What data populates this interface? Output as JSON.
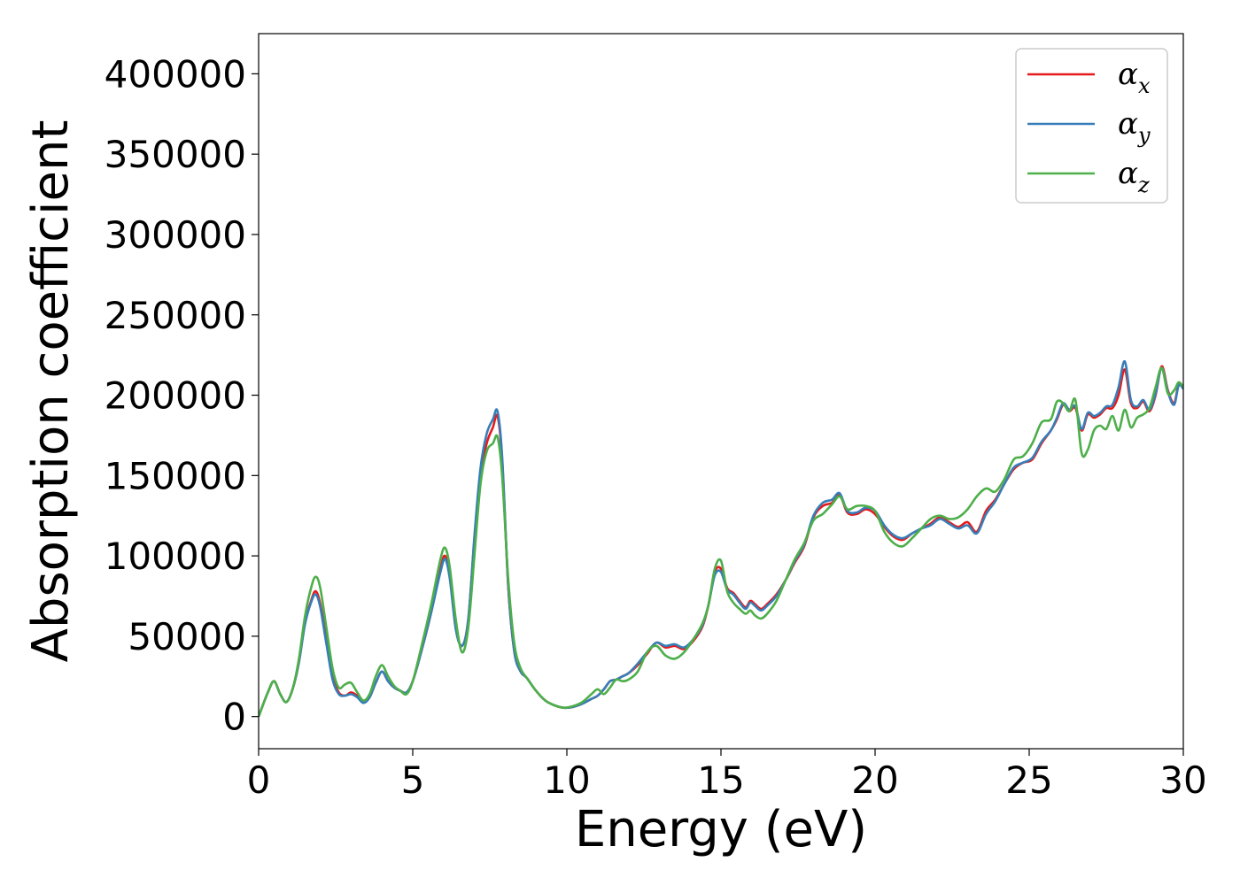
{
  "chart_data": {
    "type": "line",
    "title": "",
    "xlabel": "Energy (eV)",
    "ylabel": "Absorption coefficient",
    "xlim": [
      0,
      30
    ],
    "ylim": [
      -20000,
      425000
    ],
    "xticks": [
      "0",
      "5",
      "10",
      "15",
      "20",
      "25",
      "30"
    ],
    "yticks": [
      "0",
      "50000",
      "100000",
      "150000",
      "200000",
      "250000",
      "300000",
      "350000",
      "400000"
    ],
    "grid": false,
    "legend_position": "top-right",
    "series": [
      {
        "name": "αx",
        "legend_base": "α",
        "legend_sub": "x",
        "color": "#e41a1c",
        "x": [
          0,
          0.3,
          0.5,
          0.7,
          0.9,
          1.1,
          1.3,
          1.5,
          1.7,
          1.85,
          2.0,
          2.2,
          2.4,
          2.6,
          2.8,
          3.0,
          3.2,
          3.4,
          3.6,
          3.8,
          4.0,
          4.2,
          4.4,
          4.6,
          4.8,
          5.0,
          5.3,
          5.6,
          5.9,
          6.05,
          6.2,
          6.4,
          6.6,
          6.8,
          7.0,
          7.2,
          7.4,
          7.6,
          7.75,
          7.9,
          8.1,
          8.3,
          8.5,
          8.7,
          9.0,
          9.3,
          9.6,
          9.9,
          10.2,
          10.5,
          10.8,
          11.0,
          11.2,
          11.4,
          11.6,
          11.8,
          12.0,
          12.3,
          12.6,
          12.9,
          13.2,
          13.5,
          13.8,
          14.1,
          14.4,
          14.6,
          14.8,
          15.0,
          15.2,
          15.4,
          15.6,
          15.8,
          15.95,
          16.1,
          16.3,
          16.5,
          16.8,
          17.1,
          17.4,
          17.7,
          18.0,
          18.3,
          18.6,
          18.85,
          19.1,
          19.4,
          19.7,
          20.0,
          20.3,
          20.6,
          20.9,
          21.2,
          21.5,
          21.8,
          22.1,
          22.4,
          22.7,
          23.0,
          23.3,
          23.6,
          23.9,
          24.2,
          24.5,
          24.8,
          25.1,
          25.4,
          25.7,
          25.9,
          26.1,
          26.3,
          26.5,
          26.7,
          26.9,
          27.1,
          27.3,
          27.5,
          27.7,
          27.9,
          28.1,
          28.3,
          28.5,
          28.7,
          28.9,
          29.1,
          29.3,
          29.5,
          29.7,
          29.85,
          30.0
        ],
        "y": [
          0,
          15000,
          22000,
          14000,
          9000,
          17000,
          33000,
          58000,
          72000,
          78000,
          70000,
          48000,
          25000,
          15000,
          13000,
          15000,
          13000,
          9000,
          12000,
          21000,
          28000,
          22000,
          18000,
          16000,
          15000,
          22000,
          42000,
          65000,
          92000,
          100000,
          88000,
          55000,
          44000,
          60000,
          110000,
          150000,
          170000,
          180000,
          187000,
          160000,
          80000,
          40000,
          28000,
          24000,
          16000,
          10000,
          7000,
          5500,
          6000,
          8000,
          11000,
          13000,
          17000,
          22000,
          23000,
          25000,
          27000,
          32000,
          39000,
          46000,
          43000,
          44000,
          42000,
          47000,
          56000,
          70000,
          90000,
          92000,
          80000,
          77000,
          72000,
          68000,
          72000,
          70000,
          67000,
          70000,
          76000,
          85000,
          96000,
          106000,
          124000,
          131000,
          133000,
          138000,
          127000,
          126000,
          129000,
          126000,
          118000,
          112000,
          110000,
          114000,
          117000,
          120000,
          124000,
          121000,
          118000,
          121000,
          115000,
          128000,
          135000,
          145000,
          154000,
          158000,
          160000,
          170000,
          178000,
          185000,
          194000,
          190000,
          192000,
          178000,
          188000,
          186000,
          188000,
          192000,
          192000,
          200000,
          216000,
          195000,
          192000,
          196000,
          190000,
          200000,
          218000,
          203000,
          195000,
          207000,
          205000
        ]
      },
      {
        "name": "αy",
        "legend_base": "α",
        "legend_sub": "y",
        "color": "#377eb8",
        "x": [
          0,
          0.3,
          0.5,
          0.7,
          0.9,
          1.1,
          1.3,
          1.5,
          1.7,
          1.85,
          2.0,
          2.2,
          2.4,
          2.6,
          2.8,
          3.0,
          3.2,
          3.4,
          3.6,
          3.8,
          4.0,
          4.2,
          4.4,
          4.6,
          4.8,
          5.0,
          5.3,
          5.6,
          5.9,
          6.05,
          6.2,
          6.4,
          6.6,
          6.8,
          7.0,
          7.2,
          7.4,
          7.6,
          7.75,
          7.9,
          8.1,
          8.3,
          8.5,
          8.7,
          9.0,
          9.3,
          9.6,
          9.9,
          10.2,
          10.5,
          10.8,
          11.0,
          11.2,
          11.4,
          11.6,
          11.8,
          12.0,
          12.3,
          12.6,
          12.9,
          13.2,
          13.5,
          13.8,
          14.1,
          14.4,
          14.6,
          14.8,
          15.0,
          15.2,
          15.4,
          15.6,
          15.8,
          15.95,
          16.1,
          16.3,
          16.5,
          16.8,
          17.1,
          17.4,
          17.7,
          18.0,
          18.3,
          18.6,
          18.85,
          19.1,
          19.4,
          19.7,
          20.0,
          20.3,
          20.6,
          20.9,
          21.2,
          21.5,
          21.8,
          22.1,
          22.4,
          22.7,
          23.0,
          23.3,
          23.6,
          23.9,
          24.2,
          24.5,
          24.8,
          25.1,
          25.4,
          25.7,
          25.9,
          26.1,
          26.3,
          26.5,
          26.7,
          26.9,
          27.1,
          27.3,
          27.5,
          27.7,
          27.9,
          28.1,
          28.3,
          28.5,
          28.7,
          28.9,
          29.1,
          29.3,
          29.5,
          29.7,
          29.85,
          30.0
        ],
        "y": [
          0,
          15000,
          22000,
          14000,
          9000,
          17000,
          33000,
          57000,
          71000,
          76000,
          68000,
          45000,
          23000,
          14000,
          13000,
          14000,
          12000,
          8500,
          12000,
          21000,
          28000,
          22000,
          18000,
          16000,
          15000,
          22000,
          42000,
          65000,
          90000,
          98000,
          86000,
          54000,
          44000,
          60000,
          112000,
          155000,
          176000,
          185000,
          190000,
          162000,
          81000,
          40000,
          28000,
          24000,
          16000,
          10000,
          7000,
          5500,
          6000,
          8000,
          11000,
          13000,
          17000,
          22000,
          23000,
          25000,
          27000,
          33000,
          40000,
          46000,
          44000,
          45000,
          43000,
          48000,
          57000,
          70000,
          88000,
          90000,
          79000,
          76000,
          71000,
          67000,
          71000,
          69000,
          66000,
          69000,
          75000,
          85000,
          97000,
          107000,
          125000,
          133000,
          135000,
          139000,
          128000,
          127000,
          130000,
          128000,
          119000,
          113000,
          111000,
          114000,
          117000,
          119000,
          123000,
          120000,
          117000,
          119000,
          114000,
          126000,
          134000,
          145000,
          155000,
          158000,
          161000,
          171000,
          178000,
          186000,
          195000,
          191000,
          193000,
          179000,
          189000,
          187000,
          189000,
          193000,
          194000,
          205000,
          221000,
          197000,
          193000,
          197000,
          191000,
          201000,
          217000,
          202000,
          194000,
          206000,
          204000
        ]
      },
      {
        "name": "αz",
        "legend_base": "α",
        "legend_sub": "z",
        "color": "#4daf4a",
        "x": [
          0,
          0.3,
          0.5,
          0.7,
          0.9,
          1.1,
          1.3,
          1.5,
          1.7,
          1.85,
          2.0,
          2.2,
          2.4,
          2.6,
          2.8,
          3.0,
          3.2,
          3.4,
          3.6,
          3.8,
          4.0,
          4.2,
          4.4,
          4.6,
          4.8,
          5.0,
          5.3,
          5.6,
          5.9,
          6.05,
          6.2,
          6.4,
          6.6,
          6.8,
          7.0,
          7.2,
          7.4,
          7.6,
          7.75,
          7.9,
          8.1,
          8.3,
          8.5,
          8.7,
          9.0,
          9.3,
          9.6,
          9.9,
          10.2,
          10.5,
          10.8,
          11.0,
          11.2,
          11.4,
          11.6,
          11.8,
          12.0,
          12.3,
          12.6,
          12.9,
          13.2,
          13.5,
          13.8,
          14.1,
          14.4,
          14.6,
          14.8,
          15.0,
          15.2,
          15.4,
          15.6,
          15.8,
          15.95,
          16.1,
          16.3,
          16.5,
          16.8,
          17.1,
          17.4,
          17.7,
          18.0,
          18.3,
          18.6,
          18.85,
          19.1,
          19.4,
          19.7,
          20.0,
          20.3,
          20.6,
          20.9,
          21.2,
          21.5,
          21.8,
          22.1,
          22.4,
          22.7,
          23.0,
          23.3,
          23.6,
          23.9,
          24.2,
          24.5,
          24.8,
          25.1,
          25.4,
          25.7,
          25.9,
          26.1,
          26.3,
          26.5,
          26.7,
          26.9,
          27.1,
          27.3,
          27.5,
          27.7,
          27.9,
          28.1,
          28.3,
          28.5,
          28.7,
          28.9,
          29.1,
          29.3,
          29.5,
          29.7,
          29.85,
          30.0
        ],
        "y": [
          0,
          15000,
          22000,
          14000,
          9000,
          17000,
          35000,
          62000,
          80000,
          87000,
          80000,
          55000,
          30000,
          18000,
          20000,
          21000,
          15000,
          10000,
          14000,
          25000,
          32000,
          25000,
          19000,
          16000,
          14000,
          22000,
          45000,
          70000,
          98000,
          105000,
          93000,
          60000,
          40000,
          55000,
          100000,
          145000,
          165000,
          170000,
          174000,
          150000,
          85000,
          45000,
          30000,
          24000,
          16000,
          10000,
          7000,
          5500,
          6500,
          9000,
          14000,
          17000,
          14000,
          18000,
          23000,
          22000,
          23000,
          28000,
          40000,
          44000,
          38000,
          36000,
          40000,
          48000,
          58000,
          70000,
          92000,
          97000,
          78000,
          71000,
          67000,
          64000,
          66000,
          63000,
          61000,
          64000,
          72000,
          85000,
          98000,
          108000,
          122000,
          126000,
          132000,
          137000,
          129000,
          131000,
          131000,
          128000,
          115000,
          108000,
          106000,
          111000,
          117000,
          123000,
          125000,
          123000,
          124000,
          129000,
          137000,
          142000,
          140000,
          148000,
          160000,
          162000,
          170000,
          183000,
          185000,
          196000,
          195000,
          190000,
          197000,
          164000,
          166000,
          178000,
          181000,
          179000,
          187000,
          178000,
          191000,
          180000,
          186000,
          188000,
          192000,
          205000,
          217000,
          201000,
          203000,
          208000,
          205000
        ]
      }
    ]
  }
}
